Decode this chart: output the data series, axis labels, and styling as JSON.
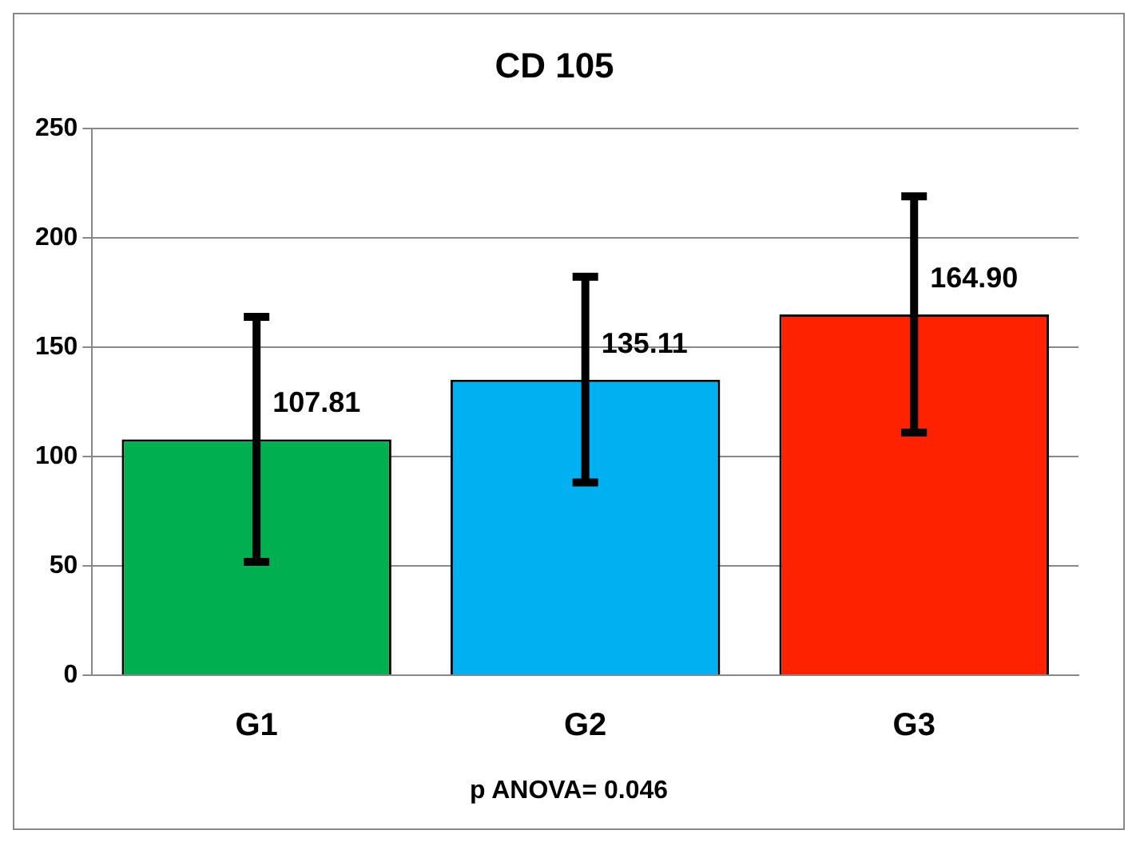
{
  "chart_data": {
    "type": "bar",
    "title": "CD 105",
    "categories": [
      "G1",
      "G2",
      "G3"
    ],
    "values": [
      107.81,
      135.11,
      164.9
    ],
    "value_labels": [
      "107.81",
      "135.11",
      "164.90"
    ],
    "errors": [
      56,
      47,
      54
    ],
    "colors": [
      "#00b050",
      "#00b0f0",
      "#ff2200"
    ],
    "ylim": [
      0,
      250
    ],
    "yticks": [
      0,
      50,
      100,
      150,
      200,
      250
    ],
    "grid": "y",
    "annotations": [
      "p ANOVA= 0.046"
    ]
  }
}
